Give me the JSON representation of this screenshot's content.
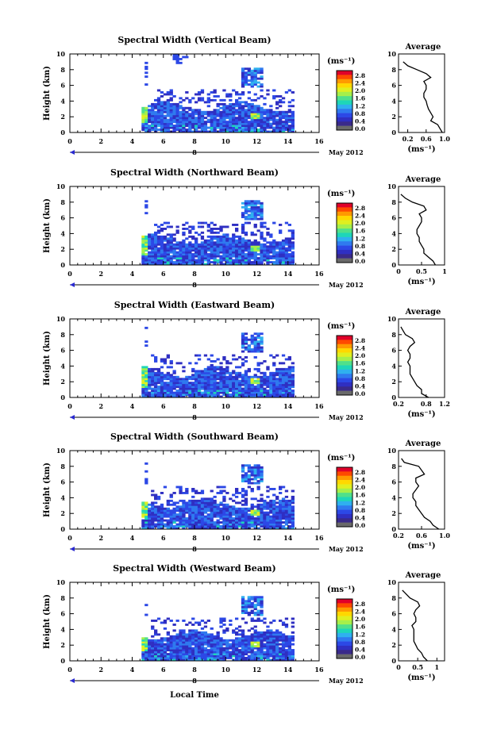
{
  "figure": {
    "x_label": "Local Time",
    "date_label": "May 2012",
    "date_marker": "8"
  },
  "colorbar": {
    "unit": "(ms⁻¹)",
    "ticks": [
      "2.8",
      "2.4",
      "2.0",
      "1.6",
      "1.2",
      "0.8",
      "0.4",
      "0.0"
    ],
    "colors": [
      "#e0002a",
      "#ff4a00",
      "#ff9a00",
      "#ffd800",
      "#e0ef20",
      "#a6ef4a",
      "#50e08a",
      "#1ed6b8",
      "#2fb0ef",
      "#2f7aef",
      "#2c48e6",
      "#2f2fc2",
      "#3a2a8a",
      "#6a6a6a"
    ]
  },
  "chart_data": [
    {
      "type": "heatmap",
      "title": "Spectral Width (Vertical Beam)",
      "xlabel": "",
      "ylabel": "Height (km)",
      "xlim": [
        0,
        16
      ],
      "ylim": [
        0,
        10
      ],
      "xticks": [
        "0",
        "2",
        "4",
        "6",
        "8",
        "10",
        "12",
        "14",
        "16"
      ],
      "yticks": [
        "0",
        "2",
        "4",
        "6",
        "8",
        "10"
      ],
      "colorbar_range": [
        0.0,
        2.8
      ],
      "avg_profile": {
        "title": "Average",
        "xlabel": "(ms⁻¹)",
        "xlim": [
          0,
          1.0
        ],
        "xticks": [
          "0.2",
          "0.6",
          "1.0"
        ],
        "height": [
          0,
          0.5,
          1,
          1.5,
          2,
          2.5,
          3,
          3.5,
          4,
          4.5,
          5,
          5.5,
          6,
          6.5,
          7,
          7.5,
          8,
          8.5,
          9
        ],
        "values": [
          0.95,
          0.9,
          0.85,
          0.7,
          0.75,
          0.7,
          0.65,
          0.62,
          0.6,
          0.55,
          0.55,
          0.6,
          0.6,
          0.55,
          0.7,
          0.6,
          0.4,
          0.2,
          0.1
        ]
      }
    },
    {
      "type": "heatmap",
      "title": "Spectral Width (Northward Beam)",
      "xlabel": "",
      "ylabel": "Height (km)",
      "xlim": [
        0,
        16
      ],
      "ylim": [
        0,
        10
      ],
      "xticks": [
        "0",
        "2",
        "4",
        "6",
        "8",
        "10",
        "12",
        "14",
        "16"
      ],
      "yticks": [
        "0",
        "2",
        "4",
        "6",
        "8",
        "10"
      ],
      "colorbar_range": [
        0.0,
        2.8
      ],
      "avg_profile": {
        "title": "Average",
        "xlabel": "(ms⁻¹)",
        "xlim": [
          0,
          1
        ],
        "xticks": [
          "0",
          "0.5",
          "1"
        ],
        "height": [
          0,
          0.5,
          1,
          1.5,
          2,
          2.5,
          3,
          3.5,
          4,
          4.5,
          5,
          5.5,
          6,
          6.5,
          7,
          7.5,
          8,
          8.5,
          9
        ],
        "values": [
          0.8,
          0.75,
          0.65,
          0.55,
          0.55,
          0.5,
          0.45,
          0.45,
          0.4,
          0.4,
          0.45,
          0.5,
          0.5,
          0.45,
          0.6,
          0.55,
          0.3,
          0.15,
          0.05
        ]
      }
    },
    {
      "type": "heatmap",
      "title": "Spectral Width (Eastward Beam)",
      "xlabel": "",
      "ylabel": "Height (km)",
      "xlim": [
        0,
        16
      ],
      "ylim": [
        0,
        10
      ],
      "xticks": [
        "0",
        "2",
        "4",
        "6",
        "8",
        "10",
        "12",
        "14",
        "16"
      ],
      "yticks": [
        "0",
        "2",
        "4",
        "6",
        "8",
        "10"
      ],
      "colorbar_range": [
        0.0,
        2.8
      ],
      "avg_profile": {
        "title": "Average",
        "xlabel": "(ms⁻¹)",
        "xlim": [
          0.2,
          1.2
        ],
        "xticks": [
          "0.2",
          "0.8",
          "1.2"
        ],
        "height": [
          0,
          0.5,
          1,
          1.5,
          2,
          2.5,
          3,
          3.5,
          4,
          4.5,
          5,
          5.5,
          6,
          6.5,
          7,
          7.5,
          8,
          8.5,
          9
        ],
        "values": [
          0.85,
          0.7,
          0.7,
          0.6,
          0.55,
          0.5,
          0.45,
          0.45,
          0.45,
          0.4,
          0.45,
          0.45,
          0.4,
          0.45,
          0.55,
          0.5,
          0.35,
          0.3,
          0.25
        ]
      }
    },
    {
      "type": "heatmap",
      "title": "Spectral Width (Southward Beam)",
      "xlabel": "",
      "ylabel": "Height (km)",
      "xlim": [
        0,
        16
      ],
      "ylim": [
        0,
        10
      ],
      "xticks": [
        "0",
        "2",
        "4",
        "6",
        "8",
        "10",
        "12",
        "14",
        "16"
      ],
      "yticks": [
        "0",
        "2",
        "4",
        "6",
        "8",
        "10"
      ],
      "colorbar_range": [
        0.0,
        2.8
      ],
      "avg_profile": {
        "title": "Average",
        "xlabel": "(ms⁻¹)",
        "xlim": [
          0.2,
          1.0
        ],
        "xticks": [
          "0.2",
          "0.6",
          "1.0"
        ],
        "height": [
          0,
          0.5,
          1,
          1.5,
          2,
          2.5,
          3,
          3.5,
          4,
          4.5,
          5,
          5.5,
          6,
          6.5,
          7,
          7.5,
          8,
          8.5,
          9
        ],
        "values": [
          0.9,
          0.8,
          0.75,
          0.65,
          0.6,
          0.55,
          0.5,
          0.5,
          0.45,
          0.45,
          0.5,
          0.55,
          0.5,
          0.5,
          0.65,
          0.6,
          0.55,
          0.3,
          0.25
        ]
      }
    },
    {
      "type": "heatmap",
      "title": "Spectral Width (Westward Beam)",
      "xlabel": "Local Time",
      "ylabel": "Height (km)",
      "xlim": [
        0,
        16
      ],
      "ylim": [
        0,
        10
      ],
      "xticks": [
        "0",
        "2",
        "4",
        "6",
        "8",
        "10",
        "12",
        "14",
        "16"
      ],
      "yticks": [
        "0",
        "2",
        "4",
        "6",
        "8",
        "10"
      ],
      "colorbar_range": [
        0.0,
        2.8
      ],
      "avg_profile": {
        "title": "Average",
        "xlabel": "(ms⁻¹)",
        "xlim": [
          0,
          1.2
        ],
        "xticks": [
          "0",
          "0.5",
          "1"
        ],
        "height": [
          0,
          0.5,
          1,
          1.5,
          2,
          2.5,
          3,
          3.5,
          4,
          4.5,
          5,
          5.5,
          6,
          6.5,
          7,
          7.5,
          8,
          8.5,
          9
        ],
        "values": [
          0.75,
          0.65,
          0.6,
          0.5,
          0.45,
          0.4,
          0.4,
          0.4,
          0.4,
          0.35,
          0.45,
          0.45,
          0.4,
          0.45,
          0.55,
          0.5,
          0.3,
          0.2,
          0.1
        ]
      }
    }
  ]
}
